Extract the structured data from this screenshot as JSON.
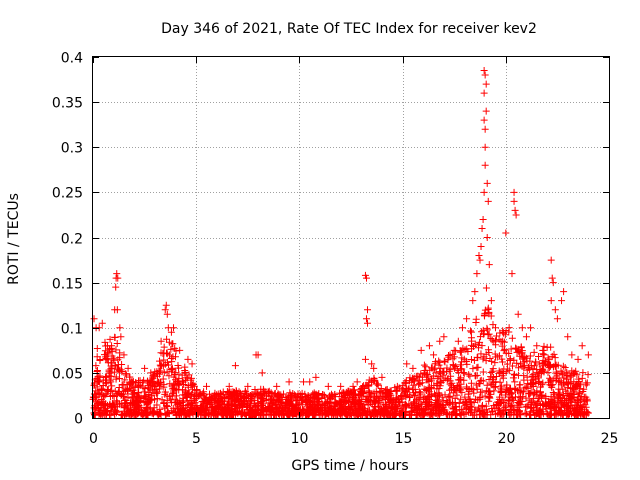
{
  "chart_data": {
    "type": "scatter",
    "title": "Day 346 of 2021, Rate Of TEC Index for receiver kev2",
    "xlabel": "GPS time / hours",
    "ylabel": "ROTI / TECUs",
    "xlim": [
      0,
      25
    ],
    "ylim": [
      0,
      0.4
    ],
    "xticks": [
      0,
      5,
      10,
      15,
      20,
      25
    ],
    "xtick_labels": [
      "0",
      "5",
      "10",
      "15",
      "20",
      "25"
    ],
    "yticks": [
      0,
      0.05,
      0.1,
      0.15,
      0.2,
      0.25,
      0.3,
      0.35,
      0.4
    ],
    "ytick_labels": [
      "0",
      "0.05",
      "0.1",
      "0.15",
      "0.2",
      "0.25",
      "0.3",
      "0.35",
      "0.4"
    ],
    "grid": true,
    "marker": "+",
    "color": "#ff0000",
    "series": [
      {
        "name": "ROTI",
        "envelope": {
          "x": [
            0,
            0.3,
            0.7,
            1.0,
            1.2,
            1.5,
            2.0,
            2.5,
            3.0,
            3.3,
            3.6,
            3.9,
            4.2,
            4.6,
            5.0,
            5.5,
            6.0,
            7.0,
            8.0,
            9.0,
            10.0,
            11.0,
            12.0,
            13.0,
            13.5,
            14.0,
            14.5,
            15.0,
            15.5,
            16.0,
            16.5,
            17.0,
            17.5,
            18.0,
            18.4,
            18.7,
            19.0,
            19.3,
            19.6,
            20.0,
            20.3,
            20.6,
            21.0,
            21.5,
            22.0,
            22.3,
            22.7,
            23.0,
            23.5,
            24.0
          ],
          "y": [
            0.06,
            0.09,
            0.08,
            0.09,
            0.08,
            0.05,
            0.04,
            0.04,
            0.05,
            0.07,
            0.1,
            0.08,
            0.06,
            0.05,
            0.03,
            0.025,
            0.025,
            0.028,
            0.03,
            0.025,
            0.025,
            0.025,
            0.025,
            0.03,
            0.045,
            0.03,
            0.03,
            0.035,
            0.045,
            0.055,
            0.06,
            0.065,
            0.07,
            0.08,
            0.1,
            0.12,
            0.15,
            0.11,
            0.09,
            0.1,
            0.1,
            0.08,
            0.07,
            0.07,
            0.08,
            0.075,
            0.06,
            0.05,
            0.05,
            0.05
          ]
        },
        "outliers": [
          [
            0.05,
            0.11
          ],
          [
            0.15,
            0.1
          ],
          [
            0.3,
            0.1
          ],
          [
            0.45,
            0.105
          ],
          [
            0.7,
            0.08
          ],
          [
            0.9,
            0.08
          ],
          [
            1.05,
            0.12
          ],
          [
            1.1,
            0.145
          ],
          [
            1.12,
            0.155
          ],
          [
            1.15,
            0.16
          ],
          [
            1.2,
            0.155
          ],
          [
            1.18,
            0.12
          ],
          [
            1.3,
            0.1
          ],
          [
            1.35,
            0.09
          ],
          [
            1.5,
            0.07
          ],
          [
            1.7,
            0.055
          ],
          [
            1.9,
            0.04
          ],
          [
            2.5,
            0.055
          ],
          [
            2.8,
            0.05
          ],
          [
            3.3,
            0.085
          ],
          [
            3.5,
            0.12
          ],
          [
            3.55,
            0.125
          ],
          [
            3.6,
            0.115
          ],
          [
            3.65,
            0.1
          ],
          [
            3.8,
            0.095
          ],
          [
            3.9,
            0.1
          ],
          [
            4.2,
            0.075
          ],
          [
            4.6,
            0.065
          ],
          [
            4.8,
            0.06
          ],
          [
            5.5,
            0.035
          ],
          [
            6.6,
            0.035
          ],
          [
            6.9,
            0.058
          ],
          [
            7.5,
            0.035
          ],
          [
            7.9,
            0.07
          ],
          [
            8.0,
            0.07
          ],
          [
            8.2,
            0.05
          ],
          [
            8.9,
            0.035
          ],
          [
            9.5,
            0.04
          ],
          [
            10.2,
            0.04
          ],
          [
            10.5,
            0.04
          ],
          [
            10.8,
            0.045
          ],
          [
            11.4,
            0.035
          ],
          [
            12.0,
            0.035
          ],
          [
            12.6,
            0.035
          ],
          [
            12.8,
            0.04
          ],
          [
            13.2,
            0.158
          ],
          [
            13.25,
            0.155
          ],
          [
            13.3,
            0.12
          ],
          [
            13.25,
            0.11
          ],
          [
            13.3,
            0.105
          ],
          [
            13.2,
            0.065
          ],
          [
            13.5,
            0.06
          ],
          [
            13.6,
            0.055
          ],
          [
            14.0,
            0.045
          ],
          [
            15.2,
            0.06
          ],
          [
            15.5,
            0.055
          ],
          [
            15.9,
            0.075
          ],
          [
            16.3,
            0.08
          ],
          [
            16.5,
            0.07
          ],
          [
            16.8,
            0.085
          ],
          [
            17.0,
            0.09
          ],
          [
            17.3,
            0.07
          ],
          [
            17.5,
            0.075
          ],
          [
            17.7,
            0.085
          ],
          [
            17.9,
            0.1
          ],
          [
            18.1,
            0.11
          ],
          [
            18.4,
            0.13
          ],
          [
            18.5,
            0.14
          ],
          [
            18.6,
            0.16
          ],
          [
            18.7,
            0.18
          ],
          [
            18.75,
            0.175
          ],
          [
            18.8,
            0.19
          ],
          [
            18.85,
            0.21
          ],
          [
            18.9,
            0.22
          ],
          [
            18.95,
            0.25
          ],
          [
            19.0,
            0.28
          ],
          [
            19.0,
            0.3
          ],
          [
            18.95,
            0.33
          ],
          [
            18.95,
            0.36
          ],
          [
            19.0,
            0.38
          ],
          [
            18.95,
            0.385
          ],
          [
            19.05,
            0.37
          ],
          [
            19.05,
            0.34
          ],
          [
            19.0,
            0.32
          ],
          [
            19.1,
            0.26
          ],
          [
            19.15,
            0.24
          ],
          [
            19.1,
            0.2
          ],
          [
            19.2,
            0.17
          ],
          [
            19.3,
            0.13
          ],
          [
            19.5,
            0.1
          ],
          [
            20.0,
            0.205
          ],
          [
            20.3,
            0.16
          ],
          [
            20.4,
            0.25
          ],
          [
            20.4,
            0.24
          ],
          [
            20.45,
            0.23
          ],
          [
            20.5,
            0.225
          ],
          [
            20.6,
            0.115
          ],
          [
            20.8,
            0.1
          ],
          [
            21.0,
            0.09
          ],
          [
            21.2,
            0.1
          ],
          [
            21.5,
            0.08
          ],
          [
            21.8,
            0.075
          ],
          [
            22.2,
            0.175
          ],
          [
            22.25,
            0.155
          ],
          [
            22.3,
            0.15
          ],
          [
            22.2,
            0.13
          ],
          [
            22.4,
            0.12
          ],
          [
            22.5,
            0.11
          ],
          [
            22.7,
            0.13
          ],
          [
            22.8,
            0.14
          ],
          [
            23.0,
            0.09
          ],
          [
            23.2,
            0.07
          ],
          [
            23.5,
            0.065
          ],
          [
            23.7,
            0.08
          ],
          [
            24.0,
            0.07
          ]
        ]
      }
    ]
  }
}
